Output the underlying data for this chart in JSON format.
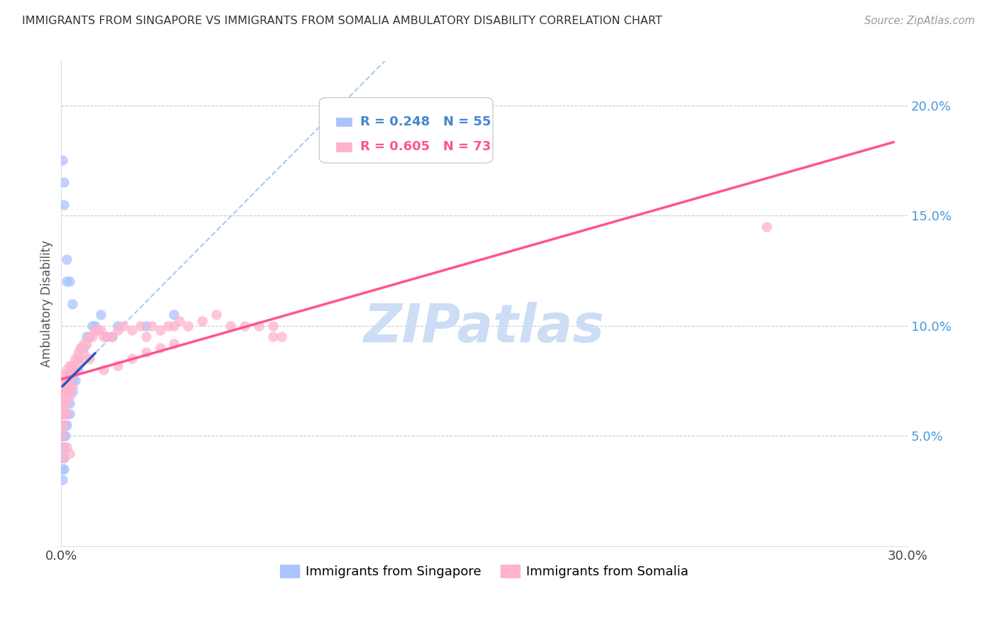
{
  "title": "IMMIGRANTS FROM SINGAPORE VS IMMIGRANTS FROM SOMALIA AMBULATORY DISABILITY CORRELATION CHART",
  "source": "Source: ZipAtlas.com",
  "ylabel": "Ambulatory Disability",
  "xlim": [
    0.0,
    0.3
  ],
  "ylim": [
    0.0,
    0.22
  ],
  "x_ticks": [
    0.0,
    0.05,
    0.1,
    0.15,
    0.2,
    0.25,
    0.3
  ],
  "x_tick_labels": [
    "0.0%",
    "",
    "",
    "",
    "",
    "",
    "30.0%"
  ],
  "y_ticks_right": [
    0.05,
    0.1,
    0.15,
    0.2
  ],
  "y_tick_labels_right": [
    "5.0%",
    "10.0%",
    "15.0%",
    "20.0%"
  ],
  "singapore_R": 0.248,
  "singapore_N": 55,
  "somalia_R": 0.605,
  "somalia_N": 73,
  "singapore_color": "#aac4ff",
  "somalia_color": "#ffb3cc",
  "singapore_line_color": "#3355bb",
  "somalia_line_color": "#ff5588",
  "singapore_dashed_color": "#99bbee",
  "watermark": "ZIPatlas",
  "watermark_color": "#ccddf5",
  "sg_x": [
    0.0005,
    0.0005,
    0.0005,
    0.0005,
    0.0005,
    0.0005,
    0.0005,
    0.0005,
    0.0005,
    0.001,
    0.001,
    0.001,
    0.001,
    0.001,
    0.001,
    0.001,
    0.001,
    0.0015,
    0.0015,
    0.0015,
    0.002,
    0.002,
    0.002,
    0.002,
    0.002,
    0.003,
    0.003,
    0.003,
    0.003,
    0.004,
    0.004,
    0.004,
    0.005,
    0.005,
    0.006,
    0.006,
    0.007,
    0.008,
    0.009,
    0.01,
    0.011,
    0.012,
    0.014,
    0.016,
    0.018,
    0.02,
    0.0005,
    0.001,
    0.001,
    0.002,
    0.002,
    0.003,
    0.004,
    0.03,
    0.04
  ],
  "sg_y": [
    0.055,
    0.05,
    0.045,
    0.04,
    0.035,
    0.06,
    0.065,
    0.07,
    0.03,
    0.06,
    0.055,
    0.05,
    0.045,
    0.04,
    0.035,
    0.065,
    0.07,
    0.06,
    0.055,
    0.05,
    0.075,
    0.07,
    0.065,
    0.06,
    0.055,
    0.075,
    0.07,
    0.065,
    0.06,
    0.08,
    0.075,
    0.07,
    0.08,
    0.075,
    0.085,
    0.08,
    0.09,
    0.09,
    0.095,
    0.095,
    0.1,
    0.1,
    0.105,
    0.095,
    0.095,
    0.1,
    0.175,
    0.165,
    0.155,
    0.13,
    0.12,
    0.12,
    0.11,
    0.1,
    0.105
  ],
  "so_x": [
    0.0005,
    0.0005,
    0.0005,
    0.0005,
    0.0005,
    0.0005,
    0.001,
    0.001,
    0.001,
    0.001,
    0.001,
    0.0015,
    0.0015,
    0.0015,
    0.002,
    0.002,
    0.002,
    0.002,
    0.002,
    0.003,
    0.003,
    0.003,
    0.003,
    0.004,
    0.004,
    0.004,
    0.005,
    0.005,
    0.006,
    0.006,
    0.007,
    0.007,
    0.008,
    0.008,
    0.009,
    0.01,
    0.011,
    0.012,
    0.013,
    0.014,
    0.015,
    0.016,
    0.018,
    0.02,
    0.022,
    0.025,
    0.028,
    0.03,
    0.032,
    0.035,
    0.038,
    0.04,
    0.042,
    0.045,
    0.05,
    0.055,
    0.06,
    0.065,
    0.07,
    0.075,
    0.001,
    0.002,
    0.003,
    0.01,
    0.015,
    0.02,
    0.025,
    0.03,
    0.035,
    0.04,
    0.075,
    0.078,
    0.25
  ],
  "so_y": [
    0.07,
    0.065,
    0.06,
    0.055,
    0.05,
    0.045,
    0.075,
    0.07,
    0.065,
    0.06,
    0.055,
    0.078,
    0.072,
    0.068,
    0.08,
    0.075,
    0.07,
    0.065,
    0.06,
    0.082,
    0.078,
    0.073,
    0.068,
    0.082,
    0.077,
    0.072,
    0.085,
    0.08,
    0.088,
    0.083,
    0.09,
    0.085,
    0.092,
    0.087,
    0.092,
    0.095,
    0.095,
    0.098,
    0.098,
    0.098,
    0.095,
    0.095,
    0.095,
    0.098,
    0.1,
    0.098,
    0.1,
    0.095,
    0.1,
    0.098,
    0.1,
    0.1,
    0.102,
    0.1,
    0.102,
    0.105,
    0.1,
    0.1,
    0.1,
    0.1,
    0.04,
    0.045,
    0.042,
    0.085,
    0.08,
    0.082,
    0.085,
    0.088,
    0.09,
    0.092,
    0.095,
    0.095,
    0.145
  ]
}
